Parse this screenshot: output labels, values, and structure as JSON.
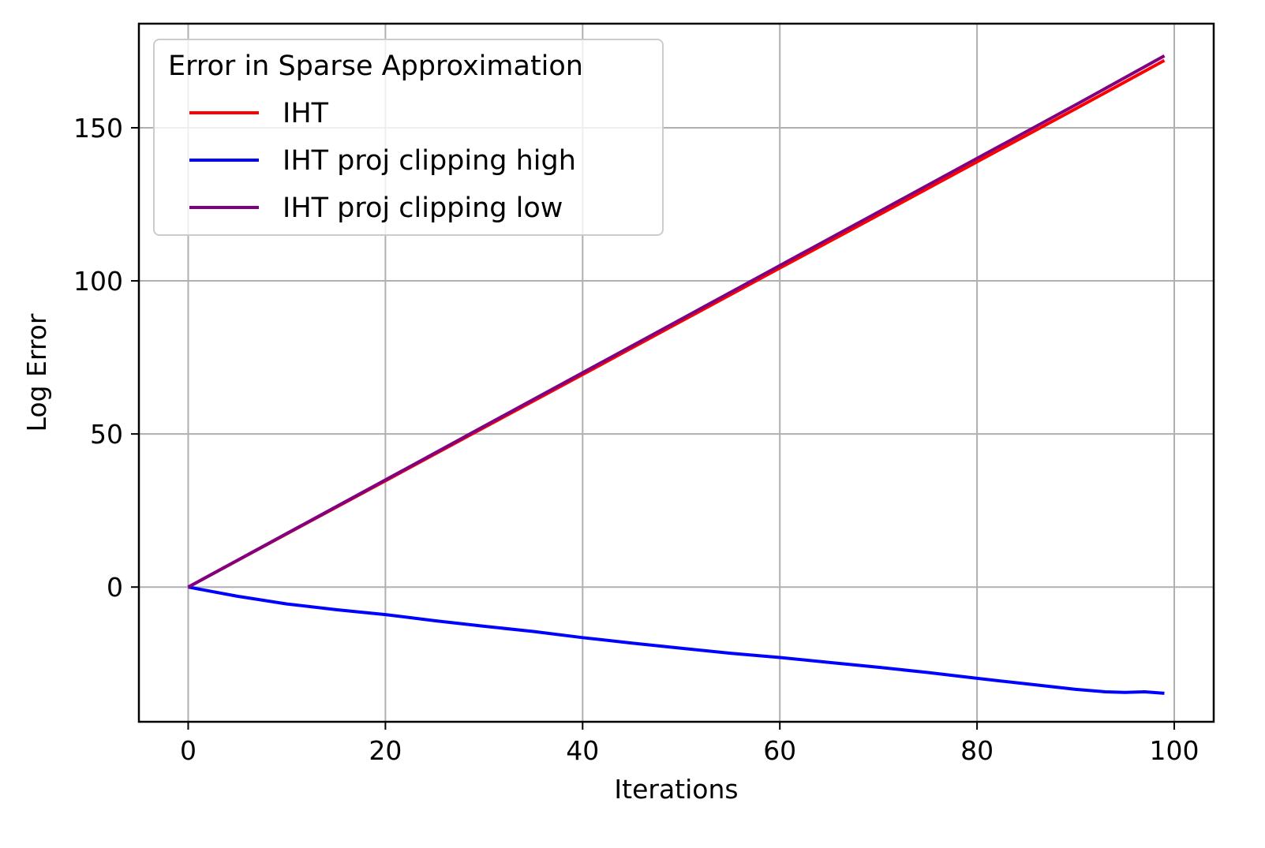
{
  "chart_data": {
    "type": "line",
    "title": "",
    "xlabel": "Iterations",
    "ylabel": "Log Error",
    "xlim": [
      -5,
      104
    ],
    "ylim": [
      -44,
      184
    ],
    "x_ticks": [
      0,
      20,
      40,
      60,
      80,
      100
    ],
    "y_ticks": [
      0,
      50,
      100,
      150
    ],
    "x_tick_labels": [
      "0",
      "20",
      "40",
      "60",
      "80",
      "100"
    ],
    "y_tick_labels": [
      "0",
      "50",
      "100",
      "150"
    ],
    "grid": true,
    "legend": {
      "title": "Error in Sparse Approximation",
      "placement": "upper-left"
    },
    "series": [
      {
        "name": "IHT",
        "color": "#ff0000",
        "x": [
          0,
          10,
          20,
          30,
          40,
          50,
          60,
          70,
          80,
          90,
          99
        ],
        "y": [
          0,
          17.4,
          34.7,
          52.1,
          69.4,
          86.8,
          104.2,
          121.5,
          138.9,
          156.2,
          172.0
        ]
      },
      {
        "name": "IHT proj clipping high",
        "color": "#0000ff",
        "x": [
          0,
          5,
          10,
          15,
          20,
          25,
          30,
          35,
          40,
          45,
          50,
          55,
          60,
          65,
          70,
          75,
          80,
          85,
          90,
          93,
          95,
          97,
          99
        ],
        "y": [
          0,
          -3.0,
          -5.5,
          -7.4,
          -9.0,
          -11.0,
          -12.8,
          -14.5,
          -16.5,
          -18.3,
          -20.0,
          -21.6,
          -23.0,
          -24.6,
          -26.2,
          -27.9,
          -29.8,
          -31.6,
          -33.4,
          -34.2,
          -34.4,
          -34.2,
          -34.7
        ]
      },
      {
        "name": "IHT proj clipping low",
        "color": "#800080",
        "x": [
          0,
          10,
          20,
          30,
          40,
          50,
          60,
          70,
          80,
          90,
          99
        ],
        "y": [
          0,
          17.5,
          35.0,
          52.5,
          70.0,
          87.5,
          105.0,
          122.5,
          140.0,
          157.5,
          173.5
        ]
      }
    ]
  }
}
